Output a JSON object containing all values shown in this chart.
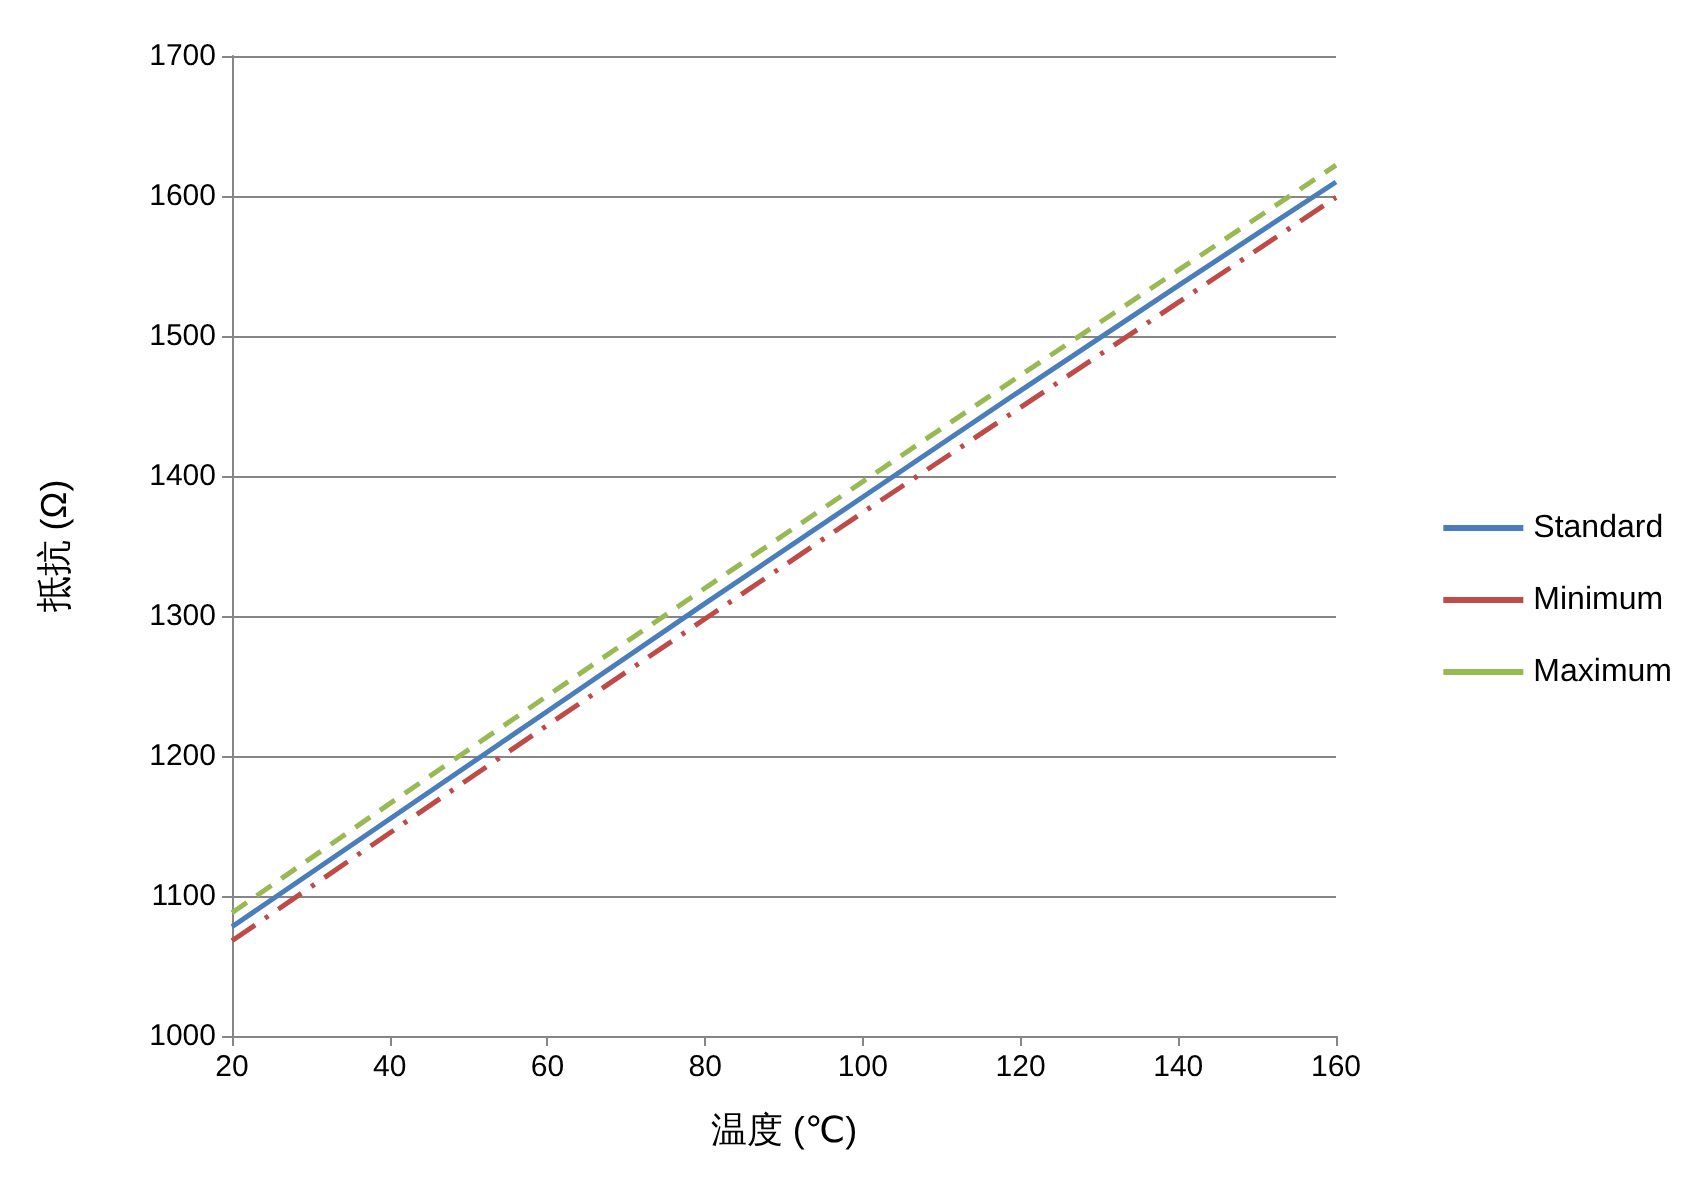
{
  "chart_data": {
    "type": "line",
    "xlabel": "温度 (℃)",
    "ylabel": "抵抗 (Ω)",
    "x": [
      20,
      40,
      60,
      80,
      100,
      120,
      140,
      160
    ],
    "series": [
      {
        "name": "Standard",
        "color": "#4a7ebb",
        "line_style": "solid",
        "values": [
          1078,
          1155,
          1232,
          1309,
          1385,
          1461,
          1536,
          1610
        ]
      },
      {
        "name": "Minimum",
        "color": "#be4b48",
        "line_style": "dashdot",
        "values": [
          1068,
          1145,
          1222,
          1298,
          1374,
          1449,
          1524,
          1599
        ]
      },
      {
        "name": "Maximum",
        "color": "#98b954",
        "line_style": "dashed",
        "values": [
          1088,
          1166,
          1243,
          1320,
          1396,
          1472,
          1547,
          1622
        ]
      }
    ],
    "xlim": [
      20,
      160
    ],
    "xticks": [
      20,
      40,
      60,
      80,
      100,
      120,
      140,
      160
    ],
    "ylim": [
      1000,
      1700
    ],
    "yticks": [
      1000,
      1100,
      1200,
      1300,
      1400,
      1500,
      1600,
      1700
    ],
    "grid": "y",
    "legend": "right",
    "marker": "none"
  }
}
